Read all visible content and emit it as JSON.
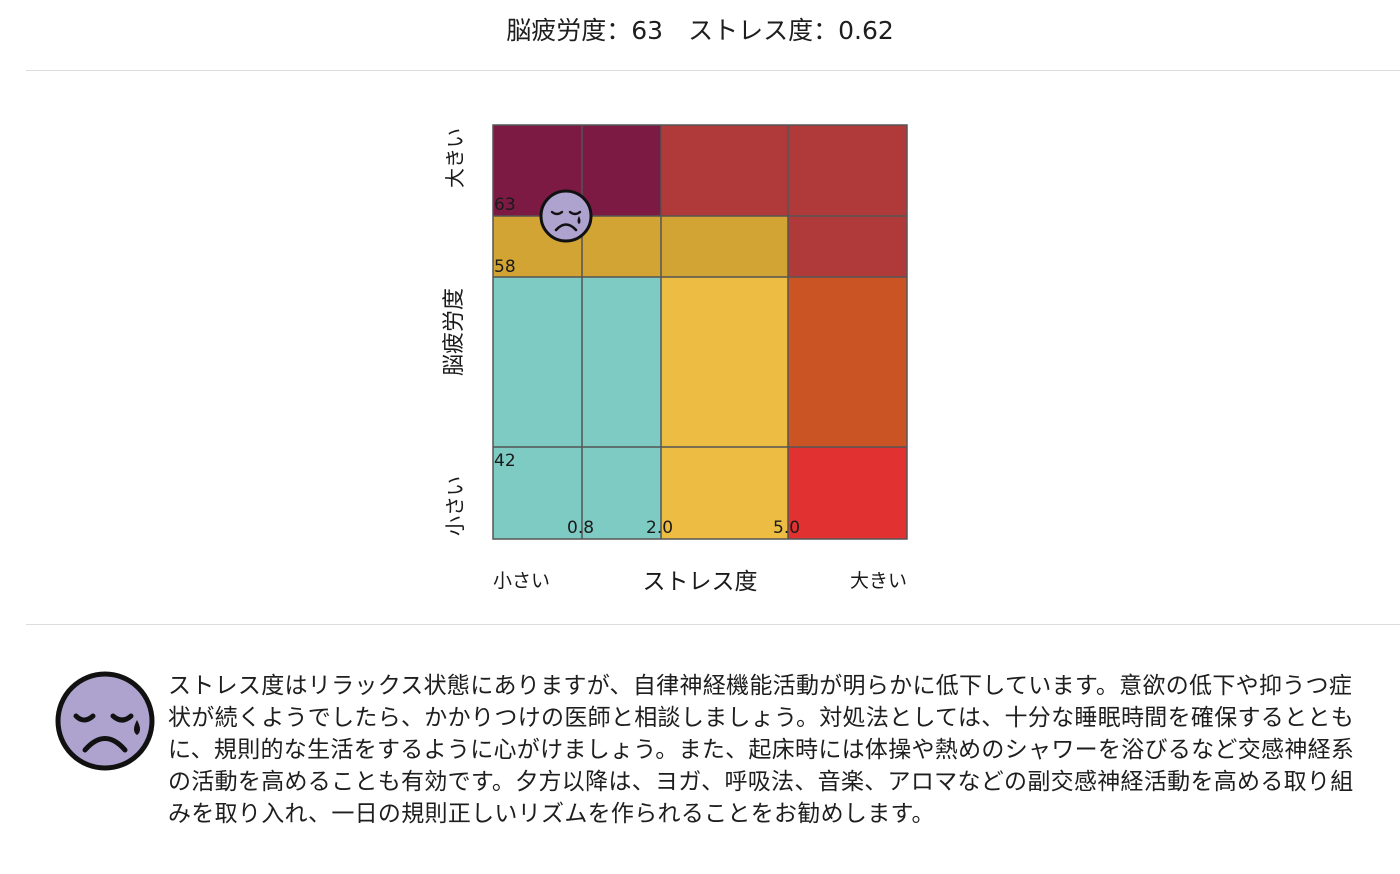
{
  "header": {
    "fatigue_label": "脳疲労度",
    "fatigue_value": "63",
    "stress_label": "ストレス度",
    "stress_value": "0.62",
    "separator": "："
  },
  "matrix": {
    "y_axis": {
      "title": "脳疲労度",
      "high_label": "大きい",
      "low_label": "小さい",
      "tick_labels": [
        "63",
        "58",
        "42"
      ]
    },
    "x_axis": {
      "title": "ストレス度",
      "low_label": "小さい",
      "high_label": "大きい",
      "tick_labels": [
        "0.8",
        "2.0",
        "5.0"
      ]
    },
    "colors": {
      "plum": "#7d1a44",
      "brick": "#b03a3a",
      "mustard": "#d1a434",
      "teal": "#7ecbc4",
      "yellow": "#ecbd42",
      "orange": "#cb5424",
      "red": "#e23131",
      "grid": "#555555"
    },
    "marker": {
      "icon": "crying-face-icon",
      "face_color": "#aea3cf"
    }
  },
  "advice": {
    "icon": "crying-face-icon",
    "text": "ストレス度はリラックス状態にありますが、自律神経機能活動が明らかに低下しています。意欲の低下や抑うつ症状が続くようでしたら、かかりつけの医師と相談しましょう。対処法としては、十分な睡眠時間を確保するとともに、規則的な生活をするように心がけましょう。また、起床時には体操や熱めのシャワーを浴びるなど交感神経系の活動を高めることも有効です。夕方以降は、ヨガ、呼吸法、音楽、アロマなどの副交感神経活動を高める取り組みを取り入れ、一日の規則正しいリズムを作られることをお勧めします。"
  }
}
